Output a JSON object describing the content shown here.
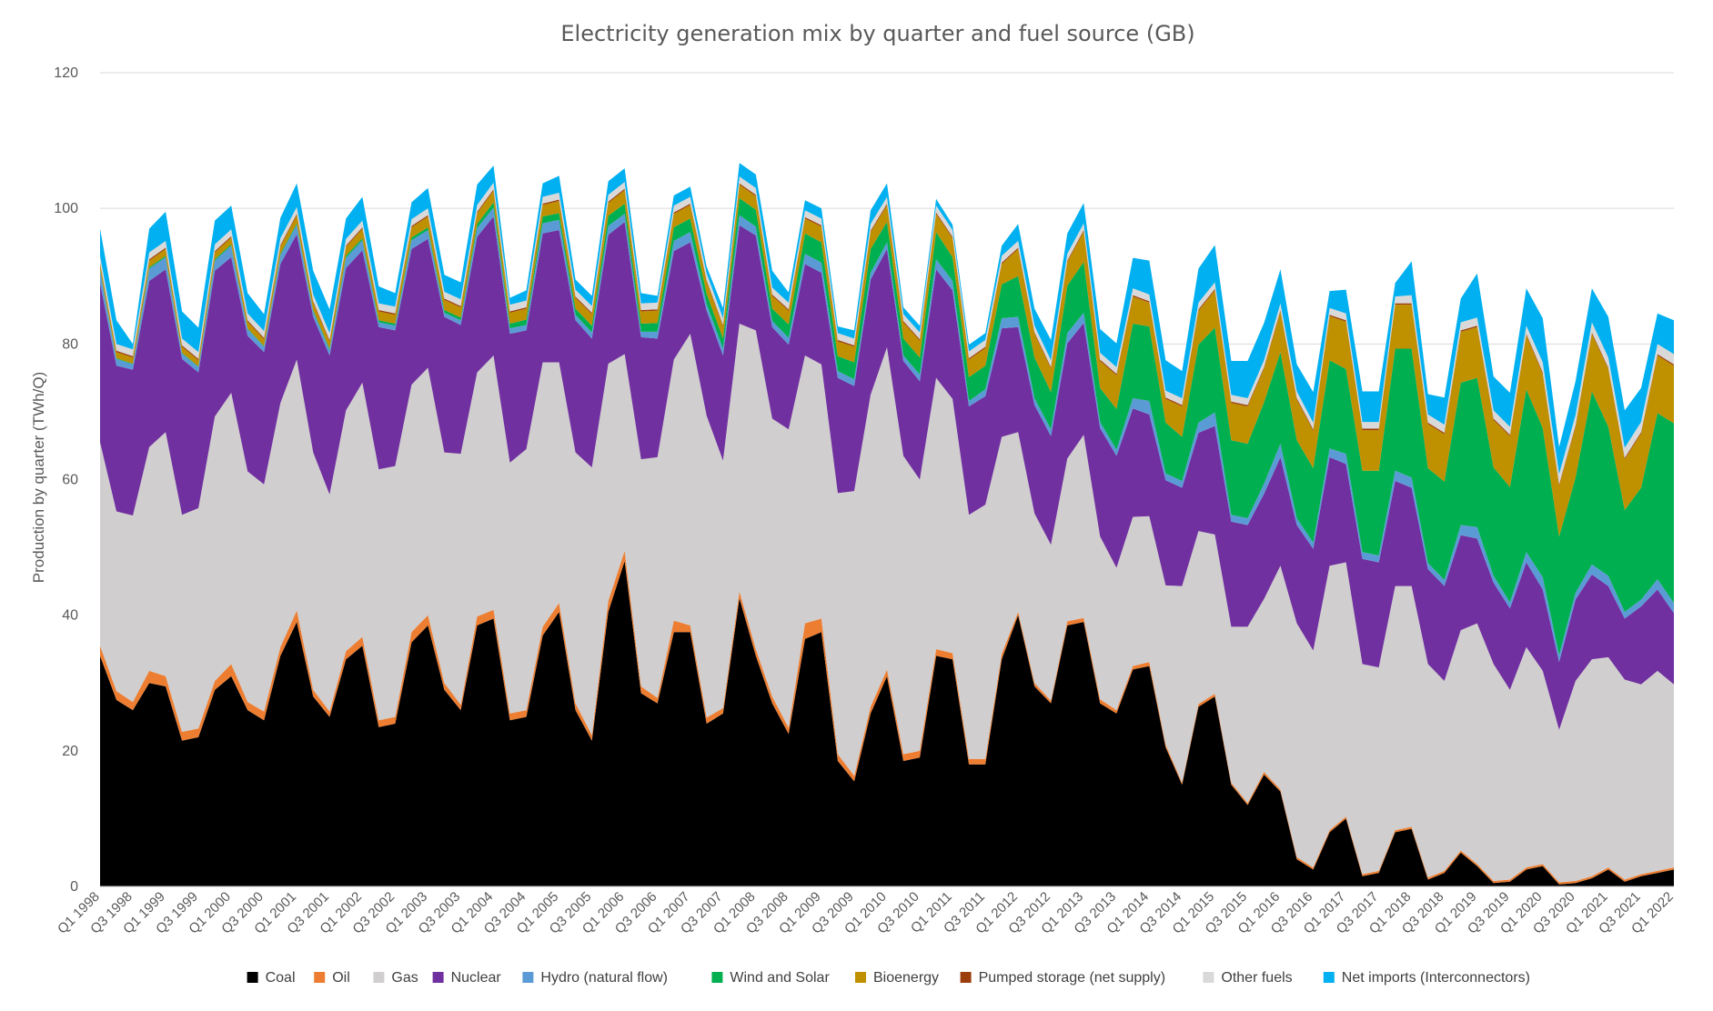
{
  "chart_data": {
    "type": "area",
    "stacked": true,
    "title": "Electricity generation mix by quarter and fuel source (GB)",
    "xlabel": "",
    "ylabel": "Production by quarter (TWh/Q)",
    "ylim": [
      0,
      120
    ],
    "yticks": [
      0,
      20,
      40,
      60,
      80,
      100,
      120
    ],
    "grid": true,
    "legend_position": "bottom",
    "x_start": {
      "year": 1998,
      "quarter": 1
    },
    "x_end": {
      "year": 2022,
      "quarter": 1
    },
    "tick_labels": [
      "Q1 1998",
      "Q3 1998",
      "Q1 1999",
      "Q3 1999",
      "Q1 2000",
      "Q3 2000",
      "Q1 2001",
      "Q3 2001",
      "Q1 2002",
      "Q3 2002",
      "Q1 2003",
      "Q3 2003",
      "Q1 2004",
      "Q3 2004",
      "Q1 2005",
      "Q3 2005",
      "Q1 2006",
      "Q3 2006",
      "Q1 2007",
      "Q3 2007",
      "Q1 2008",
      "Q3 2008",
      "Q1 2009",
      "Q3 2009",
      "Q1 2010",
      "Q3 2010",
      "Q1 2011",
      "Q3 2011",
      "Q1 2012",
      "Q3 2012",
      "Q1 2013",
      "Q3 2013",
      "Q1 2014",
      "Q3 2014",
      "Q1 2015",
      "Q3 2015",
      "Q1 2016",
      "Q3 2016",
      "Q1 2017",
      "Q3 2017",
      "Q1 2018",
      "Q3 2018",
      "Q1 2019",
      "Q3 2019",
      "Q1 2020",
      "Q3 2020",
      "Q1 2021",
      "Q3 2021",
      "Q1 2022"
    ],
    "series": [
      {
        "name": "Coal",
        "color": "#000000",
        "values": [
          34.0,
          27.5,
          26.0,
          30.0,
          29.5,
          21.5,
          22.0,
          29.0,
          31.0,
          26.0,
          24.5,
          34.0,
          39.0,
          28.0,
          25.0,
          33.5,
          35.5,
          23.5,
          24.0,
          36.0,
          38.5,
          29.0,
          26.0,
          38.5,
          39.5,
          24.5,
          25.0,
          37.0,
          40.5,
          26.0,
          21.5,
          40.5,
          48.0,
          28.5,
          27.0,
          37.5,
          37.5,
          24.0,
          25.5,
          42.5,
          34.0,
          27.0,
          22.5,
          36.5,
          37.5,
          18.5,
          15.5,
          25.5,
          31.0,
          18.5,
          19.0,
          34.0,
          33.5,
          18.0,
          18.0,
          33.5,
          40.0,
          29.5,
          27.0,
          38.5,
          39.0,
          27.0,
          25.5,
          32.0,
          32.5,
          20.5,
          15.0,
          26.5,
          28.0,
          15.0,
          12.0,
          16.5,
          14.0,
          4.0,
          2.5,
          8.0,
          10.0,
          1.5,
          2.0,
          8.0,
          8.5,
          1.0,
          2.0,
          5.0,
          3.0,
          0.5,
          0.7,
          2.5,
          3.0,
          0.3,
          0.5,
          1.2,
          2.5,
          0.7,
          1.5,
          2.0,
          2.5
        ]
      },
      {
        "name": "Oil",
        "color": "#ed7d31",
        "values": [
          1.5,
          1.3,
          1.2,
          1.8,
          1.5,
          1.3,
          1.3,
          1.3,
          1.8,
          1.2,
          1.3,
          1.3,
          1.7,
          1.0,
          0.8,
          1.2,
          1.3,
          1.0,
          1.0,
          1.5,
          1.5,
          1.0,
          0.8,
          1.3,
          1.3,
          1.0,
          1.0,
          1.3,
          1.3,
          1.0,
          0.8,
          1.6,
          1.5,
          1.0,
          0.8,
          1.7,
          1.0,
          0.9,
          0.8,
          1.0,
          1.0,
          1.0,
          0.9,
          2.3,
          2.0,
          1.0,
          0.8,
          1.0,
          1.0,
          1.0,
          1.0,
          1.0,
          0.9,
          0.8,
          0.8,
          0.8,
          0.5,
          0.5,
          0.4,
          0.6,
          0.6,
          0.6,
          0.5,
          0.5,
          0.6,
          0.4,
          0.3,
          0.4,
          0.4,
          0.3,
          0.3,
          0.4,
          0.3,
          0.3,
          0.3,
          0.3,
          0.3,
          0.3,
          0.3,
          0.3,
          0.3,
          0.3,
          0.3,
          0.3,
          0.3,
          0.3,
          0.3,
          0.3,
          0.3,
          0.3,
          0.3,
          0.3,
          0.3,
          0.3,
          0.3,
          0.3,
          0.3
        ]
      },
      {
        "name": "Gas",
        "color": "#d0cece",
        "values": [
          30.0,
          26.5,
          27.5,
          33.0,
          36.0,
          32.0,
          32.5,
          39.0,
          40.0,
          34.0,
          33.5,
          36.0,
          37.0,
          35.0,
          32.0,
          35.5,
          37.5,
          37.0,
          37.0,
          36.5,
          36.5,
          34.0,
          37.0,
          36.0,
          37.5,
          37.0,
          38.5,
          39.0,
          35.5,
          37.0,
          39.5,
          35.0,
          29.0,
          33.5,
          35.5,
          38.5,
          43.0,
          44.5,
          36.5,
          39.5,
          47.0,
          41.0,
          44.0,
          39.5,
          37.5,
          38.5,
          42.0,
          46.0,
          47.5,
          44.0,
          40.0,
          40.0,
          37.5,
          36.0,
          37.5,
          32.0,
          26.5,
          25.0,
          23.0,
          24.0,
          27.0,
          24.0,
          21.0,
          22.0,
          21.5,
          23.5,
          29.0,
          25.5,
          23.5,
          23.0,
          26.0,
          25.5,
          33.0,
          34.5,
          32.0,
          39.0,
          37.5,
          31.0,
          30.0,
          36.0,
          35.5,
          31.5,
          28.0,
          32.5,
          35.5,
          32.0,
          28.0,
          32.5,
          28.5,
          22.5,
          29.5,
          32.0,
          31.0,
          29.5,
          28.0,
          29.5,
          27.0
        ]
      },
      {
        "name": "Nuclear",
        "color": "#7030a0",
        "values": [
          23.5,
          21.5,
          21.5,
          24.5,
          24.0,
          23.0,
          20.0,
          21.5,
          20.0,
          20.0,
          19.5,
          20.5,
          18.5,
          20.0,
          20.5,
          21.0,
          19.5,
          21.0,
          20.0,
          20.0,
          19.0,
          20.0,
          19.0,
          20.0,
          20.5,
          19.0,
          17.5,
          19.0,
          19.5,
          19.5,
          19.0,
          19.0,
          19.5,
          18.0,
          17.5,
          16.0,
          13.5,
          15.5,
          15.5,
          14.5,
          14.0,
          13.5,
          12.5,
          13.5,
          13.5,
          17.0,
          15.5,
          17.0,
          14.5,
          14.0,
          14.5,
          16.0,
          16.0,
          16.0,
          16.0,
          16.0,
          15.5,
          16.0,
          16.0,
          17.0,
          16.5,
          16.0,
          16.5,
          16.0,
          15.0,
          15.5,
          14.5,
          14.5,
          16.0,
          15.5,
          15.0,
          15.5,
          16.0,
          14.5,
          15.0,
          16.0,
          14.5,
          15.5,
          15.5,
          15.5,
          14.5,
          14.0,
          14.0,
          14.0,
          12.5,
          12.0,
          12.0,
          12.5,
          12.0,
          10.0,
          12.0,
          12.5,
          10.5,
          9.0,
          11.5,
          12.0,
          10.5
        ]
      },
      {
        "name": "Hydro (natural flow)",
        "color": "#5b9bd5",
        "values": [
          1.8,
          1.0,
          0.8,
          1.8,
          1.8,
          0.8,
          0.8,
          1.5,
          1.7,
          1.0,
          0.8,
          1.3,
          1.4,
          0.8,
          0.8,
          1.5,
          1.5,
          0.7,
          0.7,
          1.3,
          1.3,
          0.6,
          0.7,
          1.3,
          1.3,
          0.8,
          0.8,
          1.5,
          1.5,
          0.8,
          0.9,
          1.3,
          1.2,
          0.8,
          1.0,
          1.5,
          1.5,
          1.0,
          1.0,
          1.5,
          1.3,
          0.9,
          1.0,
          1.5,
          1.5,
          1.0,
          1.0,
          1.0,
          1.0,
          0.8,
          1.0,
          1.5,
          1.4,
          0.8,
          1.0,
          1.5,
          1.5,
          1.0,
          1.0,
          1.5,
          1.5,
          0.9,
          0.9,
          1.5,
          2.0,
          1.0,
          1.0,
          1.5,
          2.0,
          1.0,
          1.0,
          1.5,
          2.0,
          1.0,
          0.9,
          1.3,
          1.5,
          1.0,
          1.0,
          1.5,
          1.5,
          0.9,
          0.9,
          1.5,
          1.7,
          1.0,
          0.9,
          1.5,
          1.8,
          1.0,
          1.0,
          1.5,
          1.5,
          1.0,
          1.0,
          1.5,
          1.5
        ]
      },
      {
        "name": "Wind and Solar",
        "color": "#00b050",
        "values": [
          0.2,
          0.1,
          0.1,
          0.2,
          0.2,
          0.1,
          0.1,
          0.2,
          0.2,
          0.1,
          0.1,
          0.2,
          0.2,
          0.2,
          0.2,
          0.3,
          0.3,
          0.3,
          0.3,
          0.4,
          0.4,
          0.4,
          0.4,
          0.6,
          0.8,
          0.7,
          0.8,
          1.0,
          1.0,
          0.9,
          1.0,
          1.5,
          1.5,
          1.2,
          1.3,
          2.0,
          2.0,
          1.5,
          1.5,
          2.5,
          2.5,
          1.8,
          2.0,
          3.0,
          3.0,
          2.2,
          2.5,
          3.5,
          3.0,
          2.5,
          2.5,
          4.0,
          3.5,
          3.5,
          3.5,
          5.0,
          6.0,
          6.0,
          5.5,
          7.0,
          7.5,
          5.0,
          6.0,
          11.0,
          11.0,
          7.5,
          6.5,
          11.5,
          12.5,
          11.0,
          11.0,
          12.0,
          13.5,
          11.5,
          11.0,
          13.0,
          12.5,
          12.0,
          12.5,
          18.0,
          19.0,
          14.0,
          14.5,
          21.0,
          22.0,
          16.0,
          17.0,
          24.0,
          22.0,
          17.5,
          17.0,
          25.5,
          22.0,
          15.0,
          16.5,
          24.5,
          26.5
        ]
      },
      {
        "name": "Bioenergy",
        "color": "#bf9000",
        "values": [
          0.8,
          0.9,
          0.9,
          1.0,
          1.0,
          0.9,
          0.9,
          1.0,
          1.0,
          1.0,
          1.0,
          1.1,
          1.2,
          1.1,
          1.1,
          1.3,
          1.4,
          1.3,
          1.3,
          1.5,
          1.6,
          1.5,
          1.5,
          1.6,
          1.7,
          1.6,
          1.6,
          1.7,
          1.8,
          1.6,
          1.7,
          1.9,
          2.0,
          1.8,
          1.8,
          2.0,
          2.0,
          1.8,
          1.8,
          2.0,
          2.0,
          1.9,
          2.0,
          2.2,
          2.3,
          2.2,
          2.3,
          2.5,
          2.5,
          2.4,
          2.5,
          2.7,
          2.8,
          2.6,
          2.6,
          3.0,
          4.0,
          3.5,
          3.5,
          3.5,
          4.5,
          4.0,
          5.0,
          4.0,
          3.5,
          3.5,
          4.5,
          5.0,
          5.5,
          5.5,
          5.5,
          5.0,
          6.0,
          6.0,
          5.5,
          6.5,
          7.0,
          6.0,
          6.0,
          6.5,
          6.5,
          6.5,
          7.0,
          7.5,
          7.5,
          7.0,
          7.5,
          8.0,
          8.0,
          7.5,
          7.5,
          8.5,
          8.5,
          7.5,
          8.0,
          8.5,
          8.5
        ]
      },
      {
        "name": "Pumped storage (net supply)",
        "color": "#9c3d0d",
        "values": [
          0.2,
          0.2,
          0.2,
          0.2,
          0.2,
          0.2,
          0.2,
          0.2,
          0.2,
          0.2,
          0.2,
          0.2,
          0.2,
          0.2,
          0.2,
          0.2,
          0.2,
          0.2,
          0.2,
          0.2,
          0.2,
          0.2,
          0.2,
          0.2,
          0.2,
          0.2,
          0.2,
          0.2,
          0.2,
          0.2,
          0.2,
          0.2,
          0.2,
          0.2,
          0.2,
          0.2,
          0.2,
          0.2,
          0.2,
          0.2,
          0.2,
          0.2,
          0.2,
          0.2,
          0.2,
          0.2,
          0.2,
          0.2,
          0.2,
          0.2,
          0.2,
          0.2,
          0.2,
          0.2,
          0.2,
          0.2,
          0.2,
          0.2,
          0.2,
          0.2,
          0.2,
          0.2,
          0.2,
          0.2,
          0.2,
          0.2,
          0.2,
          0.2,
          0.2,
          0.2,
          0.2,
          0.2,
          0.2,
          0.2,
          0.2,
          0.2,
          0.2,
          0.2,
          0.2,
          0.2,
          0.2,
          0.2,
          0.2,
          0.2,
          0.2,
          0.2,
          0.2,
          0.2,
          0.2,
          0.2,
          0.2,
          0.2,
          0.2,
          0.2,
          0.2,
          0.2,
          0.2
        ]
      },
      {
        "name": "Other fuels",
        "color": "#d9d9d9",
        "values": [
          1.0,
          1.0,
          1.0,
          1.0,
          1.0,
          1.0,
          1.0,
          1.0,
          1.0,
          1.0,
          1.0,
          1.0,
          1.0,
          1.0,
          1.0,
          1.0,
          1.0,
          1.0,
          1.0,
          1.0,
          1.0,
          1.0,
          1.0,
          1.0,
          1.0,
          1.0,
          1.0,
          1.0,
          1.0,
          1.0,
          1.0,
          1.0,
          1.0,
          1.0,
          1.0,
          1.0,
          1.0,
          1.0,
          1.0,
          1.0,
          1.0,
          1.0,
          1.0,
          1.0,
          1.0,
          1.0,
          1.0,
          1.0,
          1.0,
          1.0,
          1.0,
          1.0,
          1.0,
          1.0,
          1.0,
          1.0,
          1.0,
          1.0,
          1.0,
          1.0,
          1.0,
          1.0,
          1.0,
          1.0,
          1.0,
          1.0,
          1.0,
          1.0,
          1.0,
          1.0,
          1.0,
          1.0,
          1.0,
          1.0,
          1.0,
          1.0,
          1.0,
          1.0,
          1.0,
          1.0,
          1.2,
          1.2,
          1.2,
          1.2,
          1.2,
          1.2,
          1.2,
          1.2,
          1.5,
          1.5,
          1.5,
          1.5,
          1.5,
          1.5,
          1.5,
          1.5,
          1.5
        ]
      },
      {
        "name": "Net imports (Interconnectors)",
        "color": "#00b0f0",
        "values": [
          4.0,
          3.5,
          0.8,
          3.5,
          4.3,
          4.0,
          3.6,
          3.5,
          3.5,
          3.0,
          2.5,
          3.0,
          3.5,
          3.5,
          3.5,
          3.0,
          3.5,
          2.5,
          2.0,
          2.5,
          3.0,
          2.5,
          2.5,
          3.0,
          2.5,
          1.0,
          1.5,
          2.0,
          2.5,
          1.5,
          1.5,
          2.0,
          2.0,
          1.5,
          1.0,
          1.5,
          1.5,
          1.0,
          1.5,
          2.0,
          2.0,
          2.5,
          1.5,
          1.5,
          1.5,
          1.0,
          1.2,
          2.0,
          2.0,
          1.0,
          1.0,
          1.0,
          0.8,
          1.0,
          1.0,
          1.5,
          2.5,
          2.5,
          3.0,
          3.0,
          3.0,
          3.5,
          3.5,
          4.5,
          5.0,
          4.5,
          4.0,
          5.0,
          5.5,
          5.0,
          5.5,
          5.5,
          5.0,
          4.0,
          4.5,
          2.5,
          3.5,
          4.5,
          4.5,
          2.0,
          5.0,
          3.0,
          4.0,
          3.5,
          6.5,
          5.0,
          5.0,
          5.5,
          6.5,
          4.0,
          5.0,
          5.0,
          6.0,
          5.5,
          5.0,
          4.5,
          5.0
        ]
      }
    ]
  }
}
